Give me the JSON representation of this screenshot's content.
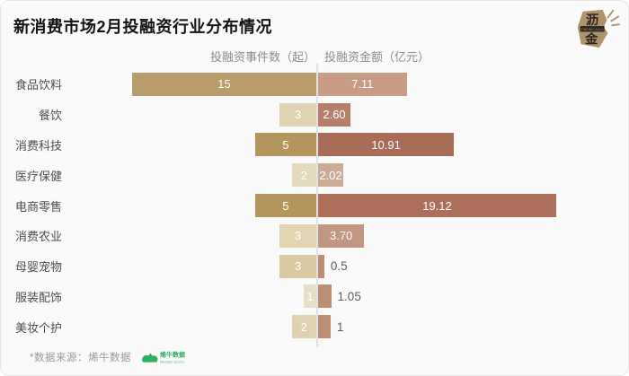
{
  "card": {
    "title": "新消费市场2月投融资行业分布情况",
    "footer_note": "*数据来源：烯牛数据"
  },
  "brand_logo": {
    "char_top": "沥",
    "char_bottom": "金",
    "band_text": "FINDING GOLD",
    "gold_color": "#b1936b",
    "dark_color": "#29231c"
  },
  "rhino_logo": {
    "cn": "烯牛数据",
    "en": "RHINO DATA",
    "green_color": "#2fae62"
  },
  "chart_data": {
    "type": "bar",
    "variant": "diverging-horizontal",
    "title": "新消费市场2月投融资行业分布情况",
    "left_axis_label": "投融资事件数（起）",
    "right_axis_label": "投融资金额（亿元）",
    "categories": [
      "食品饮料",
      "餐饮",
      "消费科技",
      "医疗保健",
      "电商零售",
      "消费农业",
      "母婴宠物",
      "服装配饰",
      "美妆个护"
    ],
    "series": [
      {
        "name": "投融资事件数（起）",
        "values": [
          15,
          3,
          5,
          2,
          5,
          3,
          3,
          1,
          2
        ]
      },
      {
        "name": "投融资金额（亿元）",
        "values": [
          7.11,
          2.6,
          10.91,
          2.02,
          19.12,
          3.7,
          0.5,
          1.05,
          1
        ]
      }
    ],
    "left_range": [
      0,
      15
    ],
    "right_range": [
      0,
      19.12
    ],
    "legend_position": "top",
    "grid": false,
    "rows": [
      {
        "label": "食品饮料",
        "events_value": 15,
        "events_label": "15",
        "events_color": "#b89c6c",
        "amount_value": 7.11,
        "amount_label": "7.11",
        "amount_color": "#c89c85",
        "amount_label_inside": true
      },
      {
        "label": "餐饮",
        "events_value": 3,
        "events_label": "3",
        "events_color": "#ded2b0",
        "amount_value": 2.6,
        "amount_label": "2.60",
        "amount_color": "#b67f6b",
        "amount_label_inside": true
      },
      {
        "label": "消费科技",
        "events_value": 5,
        "events_label": "5",
        "events_color": "#b4955d",
        "amount_value": 10.91,
        "amount_label": "10.91",
        "amount_color": "#a96c56",
        "amount_label_inside": true
      },
      {
        "label": "医疗保健",
        "events_value": 2,
        "events_label": "2",
        "events_color": "#e4d9bd",
        "amount_value": 2.02,
        "amount_label": "2.02",
        "amount_color": "#ccab96",
        "amount_label_inside": true
      },
      {
        "label": "电商零售",
        "events_value": 5,
        "events_label": "5",
        "events_color": "#b4955d",
        "amount_value": 19.12,
        "amount_label": "19.12",
        "amount_color": "#ae6f5a",
        "amount_label_inside": true
      },
      {
        "label": "消费农业",
        "events_value": 3,
        "events_label": "3",
        "events_color": "#e0d4b3",
        "amount_value": 3.7,
        "amount_label": "3.70",
        "amount_color": "#c29781",
        "amount_label_inside": true
      },
      {
        "label": "母婴宠物",
        "events_value": 3,
        "events_label": "3",
        "events_color": "#dbc9a3",
        "amount_value": 0.5,
        "amount_label": "0.5",
        "amount_color": "#bd8e74",
        "amount_label_inside": false
      },
      {
        "label": "服装配饰",
        "events_value": 1,
        "events_label": "1",
        "events_color": "#e8dfc8",
        "amount_value": 1.05,
        "amount_label": "1.05",
        "amount_color": "#bd8e74",
        "amount_label_inside": false
      },
      {
        "label": "美妆个护",
        "events_value": 2,
        "events_label": "2",
        "events_color": "#dfd2ae",
        "amount_value": 1,
        "amount_label": "1",
        "amount_color": "#bd8e74",
        "amount_label_inside": false
      }
    ]
  }
}
